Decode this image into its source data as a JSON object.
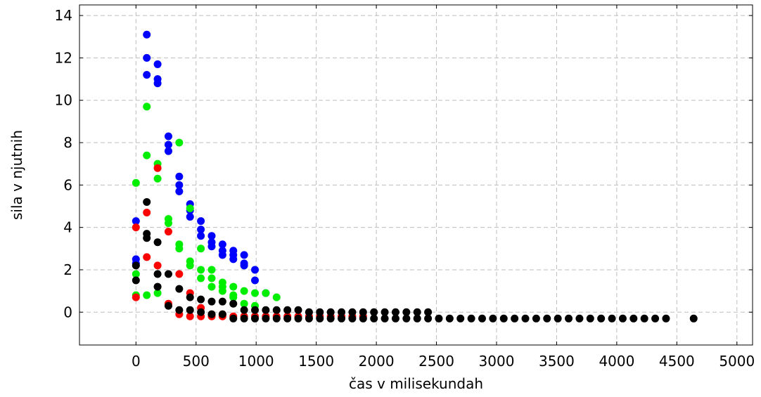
{
  "chart_data": {
    "type": "scatter",
    "title": "",
    "xlabel": "čas v milisekundah",
    "ylabel": "sila v njutnih",
    "xlim": [
      -470,
      5130
    ],
    "ylim": [
      -1.55,
      14.5
    ],
    "xticks": [
      0,
      500,
      1000,
      1500,
      2000,
      2500,
      3000,
      3500,
      4000,
      4500,
      5000
    ],
    "yticks": [
      0,
      2,
      4,
      6,
      8,
      10,
      12,
      14
    ],
    "grid": true,
    "legend": "none",
    "series": [
      {
        "color": "#0000ff",
        "points": [
          [
            0,
            4.3
          ],
          [
            0,
            2.5
          ],
          [
            0,
            2.3
          ],
          [
            90,
            13.1
          ],
          [
            90,
            12.0
          ],
          [
            90,
            11.2
          ],
          [
            180,
            11.7
          ],
          [
            180,
            11.0
          ],
          [
            180,
            10.8
          ],
          [
            270,
            8.3
          ],
          [
            270,
            7.9
          ],
          [
            270,
            7.6
          ],
          [
            360,
            6.4
          ],
          [
            360,
            6.0
          ],
          [
            360,
            5.7
          ],
          [
            450,
            5.1
          ],
          [
            450,
            4.8
          ],
          [
            450,
            4.5
          ],
          [
            540,
            4.3
          ],
          [
            540,
            3.9
          ],
          [
            540,
            3.6
          ],
          [
            630,
            3.6
          ],
          [
            630,
            3.3
          ],
          [
            630,
            3.1
          ],
          [
            720,
            3.2
          ],
          [
            720,
            2.9
          ],
          [
            720,
            2.7
          ],
          [
            810,
            2.9
          ],
          [
            810,
            2.7
          ],
          [
            810,
            2.5
          ],
          [
            900,
            2.7
          ],
          [
            900,
            2.3
          ],
          [
            900,
            2.2
          ],
          [
            990,
            2.0
          ],
          [
            990,
            1.5
          ],
          [
            1080,
            0.9
          ]
        ]
      },
      {
        "color": "#00ee00",
        "points": [
          [
            0,
            6.1
          ],
          [
            0,
            1.8
          ],
          [
            0,
            0.8
          ],
          [
            90,
            9.7
          ],
          [
            90,
            7.4
          ],
          [
            90,
            0.8
          ],
          [
            180,
            7.0
          ],
          [
            180,
            6.3
          ],
          [
            180,
            0.9
          ],
          [
            270,
            4.4
          ],
          [
            270,
            4.2
          ],
          [
            360,
            8.0
          ],
          [
            360,
            3.2
          ],
          [
            360,
            3.0
          ],
          [
            450,
            4.9
          ],
          [
            450,
            2.4
          ],
          [
            450,
            2.2
          ],
          [
            540,
            3.0
          ],
          [
            540,
            2.0
          ],
          [
            540,
            1.6
          ],
          [
            630,
            2.0
          ],
          [
            630,
            1.6
          ],
          [
            630,
            1.2
          ],
          [
            720,
            1.4
          ],
          [
            720,
            1.2
          ],
          [
            720,
            1.0
          ],
          [
            810,
            1.2
          ],
          [
            810,
            0.8
          ],
          [
            810,
            0.7
          ],
          [
            900,
            1.0
          ],
          [
            900,
            0.4
          ],
          [
            990,
            0.9
          ],
          [
            990,
            0.3
          ],
          [
            1080,
            0.9
          ],
          [
            1170,
            0.7
          ]
        ]
      },
      {
        "color": "#ff0000",
        "points": [
          [
            0,
            4.0
          ],
          [
            0,
            0.7
          ],
          [
            90,
            4.7
          ],
          [
            90,
            2.6
          ],
          [
            180,
            6.8
          ],
          [
            180,
            2.2
          ],
          [
            270,
            3.8
          ],
          [
            270,
            0.4
          ],
          [
            360,
            1.8
          ],
          [
            360,
            -0.1
          ],
          [
            450,
            0.9
          ],
          [
            450,
            -0.2
          ],
          [
            540,
            0.2
          ],
          [
            540,
            -0.2
          ],
          [
            630,
            -0.1
          ],
          [
            630,
            -0.2
          ],
          [
            720,
            -0.1
          ],
          [
            720,
            -0.2
          ],
          [
            810,
            -0.2
          ],
          [
            900,
            -0.2
          ],
          [
            990,
            -0.2
          ],
          [
            1080,
            -0.2
          ],
          [
            1170,
            -0.2
          ],
          [
            1260,
            -0.2
          ],
          [
            1350,
            -0.2
          ],
          [
            1440,
            -0.2
          ],
          [
            1530,
            -0.2
          ],
          [
            1620,
            -0.2
          ],
          [
            1710,
            -0.2
          ],
          [
            1800,
            -0.2
          ],
          [
            1890,
            -0.2
          ]
        ]
      },
      {
        "color": "#000000",
        "points": [
          [
            0,
            2.2
          ],
          [
            0,
            1.5
          ],
          [
            90,
            5.2
          ],
          [
            90,
            3.7
          ],
          [
            90,
            3.5
          ],
          [
            180,
            3.3
          ],
          [
            180,
            1.8
          ],
          [
            180,
            1.2
          ],
          [
            270,
            1.8
          ],
          [
            270,
            0.3
          ],
          [
            360,
            1.1
          ],
          [
            360,
            0.1
          ],
          [
            450,
            0.7
          ],
          [
            450,
            0.1
          ],
          [
            540,
            0.6
          ],
          [
            540,
            0.0
          ],
          [
            630,
            0.5
          ],
          [
            630,
            -0.1
          ],
          [
            720,
            0.5
          ],
          [
            720,
            -0.1
          ],
          [
            810,
            0.4
          ],
          [
            810,
            -0.3
          ],
          [
            900,
            0.1
          ],
          [
            900,
            -0.3
          ],
          [
            990,
            0.1
          ],
          [
            990,
            -0.3
          ],
          [
            1080,
            0.1
          ],
          [
            1080,
            -0.3
          ],
          [
            1170,
            0.1
          ],
          [
            1170,
            -0.3
          ],
          [
            1260,
            0.1
          ],
          [
            1260,
            -0.3
          ],
          [
            1350,
            0.1
          ],
          [
            1350,
            -0.3
          ],
          [
            1440,
            0.0
          ],
          [
            1440,
            -0.3
          ],
          [
            1530,
            0.0
          ],
          [
            1530,
            -0.3
          ],
          [
            1620,
            0.0
          ],
          [
            1620,
            -0.3
          ],
          [
            1710,
            0.0
          ],
          [
            1710,
            -0.3
          ],
          [
            1800,
            0.0
          ],
          [
            1800,
            -0.3
          ],
          [
            1890,
            0.0
          ],
          [
            1890,
            -0.3
          ],
          [
            1980,
            0.0
          ],
          [
            1980,
            -0.3
          ],
          [
            2070,
            0.0
          ],
          [
            2070,
            -0.3
          ],
          [
            2160,
            0.0
          ],
          [
            2160,
            -0.3
          ],
          [
            2250,
            0.0
          ],
          [
            2250,
            -0.3
          ],
          [
            2340,
            0.0
          ],
          [
            2340,
            -0.3
          ],
          [
            2430,
            0.0
          ],
          [
            2430,
            -0.3
          ],
          [
            2520,
            -0.3
          ],
          [
            2610,
            -0.3
          ],
          [
            2700,
            -0.3
          ],
          [
            2790,
            -0.3
          ],
          [
            2880,
            -0.3
          ],
          [
            2970,
            -0.3
          ],
          [
            3060,
            -0.3
          ],
          [
            3150,
            -0.3
          ],
          [
            3240,
            -0.3
          ],
          [
            3330,
            -0.3
          ],
          [
            3420,
            -0.3
          ],
          [
            3510,
            -0.3
          ],
          [
            3600,
            -0.3
          ],
          [
            3690,
            -0.3
          ],
          [
            3780,
            -0.3
          ],
          [
            3870,
            -0.3
          ],
          [
            3960,
            -0.3
          ],
          [
            4050,
            -0.3
          ],
          [
            4140,
            -0.3
          ],
          [
            4230,
            -0.3
          ],
          [
            4320,
            -0.3
          ],
          [
            4410,
            -0.3
          ],
          [
            4640,
            -0.3
          ]
        ]
      }
    ]
  }
}
